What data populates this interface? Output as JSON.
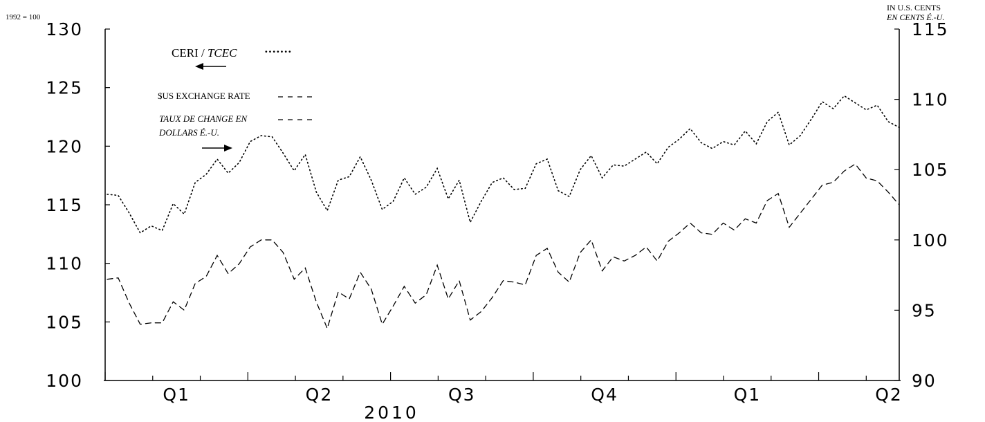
{
  "chart_data": {
    "type": "line",
    "left_axis_unit": "1992 = 100",
    "right_axis_unit_en": "IN U.S. CENTS",
    "right_axis_unit_fr": "EN CENTS É.-U.",
    "ylim_left": [
      100,
      130
    ],
    "ylim_right": [
      90,
      115
    ],
    "yticks_left": [
      "100",
      "105",
      "110",
      "115",
      "120",
      "125",
      "130"
    ],
    "yticks_right": [
      "90",
      "95",
      "100",
      "105",
      "110",
      "115"
    ],
    "quarter_labels": [
      "Q1",
      "Q2",
      "Q3",
      "Q4",
      "Q1",
      "Q2"
    ],
    "year_label": "2010",
    "grid": false,
    "legend": {
      "ceri_label": "CERI / ",
      "ceri_label_fr": "TCEC",
      "ceri_marker": "·······",
      "usd_label": "$US EXCHANGE RATE",
      "usd_label_fr_line1": "TAUX DE CHANGE EN",
      "usd_label_fr_line2": "DOLLARS É.-U."
    },
    "series": [
      {
        "name": "CERI / TCEC",
        "axis": "left",
        "style": "dotted",
        "values": [
          115.9,
          115.8,
          114.3,
          112.6,
          113.2,
          112.8,
          115.1,
          114.2,
          116.9,
          117.6,
          118.9,
          117.7,
          118.6,
          120.4,
          120.9,
          120.8,
          119.4,
          117.9,
          119.3,
          116.1,
          114.5,
          117.1,
          117.4,
          119.1,
          117.1,
          114.6,
          115.3,
          117.3,
          115.9,
          116.5,
          118.1,
          115.5,
          117.1,
          113.5,
          115.3,
          116.9,
          117.3,
          116.3,
          116.4,
          118.5,
          118.9,
          116.2,
          115.7,
          118.0,
          119.2,
          117.3,
          118.4,
          118.3,
          118.9,
          119.5,
          118.5,
          119.9,
          120.6,
          121.5,
          120.3,
          119.8,
          120.4,
          120.1,
          121.3,
          120.2,
          122.1,
          122.9,
          120.1,
          120.9,
          122.3,
          123.8,
          123.2,
          124.3,
          123.7,
          123.1,
          123.5,
          122.1,
          121.6
        ]
      },
      {
        "name": "$US EXCHANGE RATE / TAUX DE CHANGE EN DOLLARS É.-U.",
        "axis": "right",
        "style": "dashed",
        "values": [
          97.2,
          97.3,
          95.5,
          94.0,
          94.1,
          94.1,
          95.6,
          95.0,
          96.9,
          97.4,
          98.9,
          97.6,
          98.3,
          99.5,
          100.0,
          100.0,
          99.1,
          97.2,
          98.0,
          95.6,
          93.7,
          96.3,
          95.8,
          97.7,
          96.5,
          94.0,
          95.3,
          96.7,
          95.5,
          96.1,
          98.2,
          95.8,
          97.1,
          94.3,
          94.9,
          95.9,
          97.1,
          97.0,
          96.8,
          98.9,
          99.4,
          97.7,
          97.0,
          99.1,
          100.0,
          97.8,
          98.8,
          98.5,
          98.9,
          99.5,
          98.5,
          99.9,
          100.5,
          101.2,
          100.5,
          100.4,
          101.2,
          100.7,
          101.5,
          101.2,
          102.8,
          103.3,
          100.9,
          101.9,
          102.9,
          103.9,
          104.1,
          104.9,
          105.4,
          104.4,
          104.2,
          103.4,
          102.5
        ]
      }
    ]
  }
}
